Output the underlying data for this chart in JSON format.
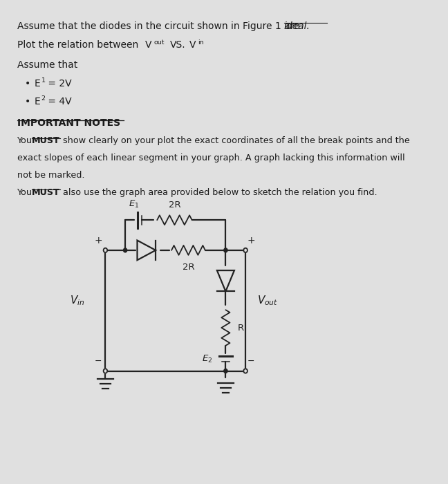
{
  "bg_color": "#e0e0e0",
  "text_color": "#1a1a1a",
  "circuit_color": "#222222",
  "title_part1": "Assume that the diodes in the circuit shown in Figure 1 are ",
  "title_italic": "ideal.",
  "line2_pre": "Plot the relation between ",
  "assume_text": "Assume that",
  "bullet1_pre": "E",
  "bullet1_sub": "1",
  "bullet1_post": " = 2V",
  "bullet2_pre": "E",
  "bullet2_sub": "2",
  "bullet2_post": " = 4V",
  "imp_header": "IMPORTANT NOTES",
  "imp_body1a": "You ",
  "imp_body1b": "MUST",
  "imp_body1c": " show clearly on your plot the exact coordinates of all the break points and the",
  "imp_body2": "exact slopes of each linear segment in your graph. A graph lacking this information will",
  "imp_body3": "not be marked.",
  "imp_body4a": "You ",
  "imp_body4b": "MUST",
  "imp_body4c": " also use the graph area provided below to sketch the relation you find."
}
